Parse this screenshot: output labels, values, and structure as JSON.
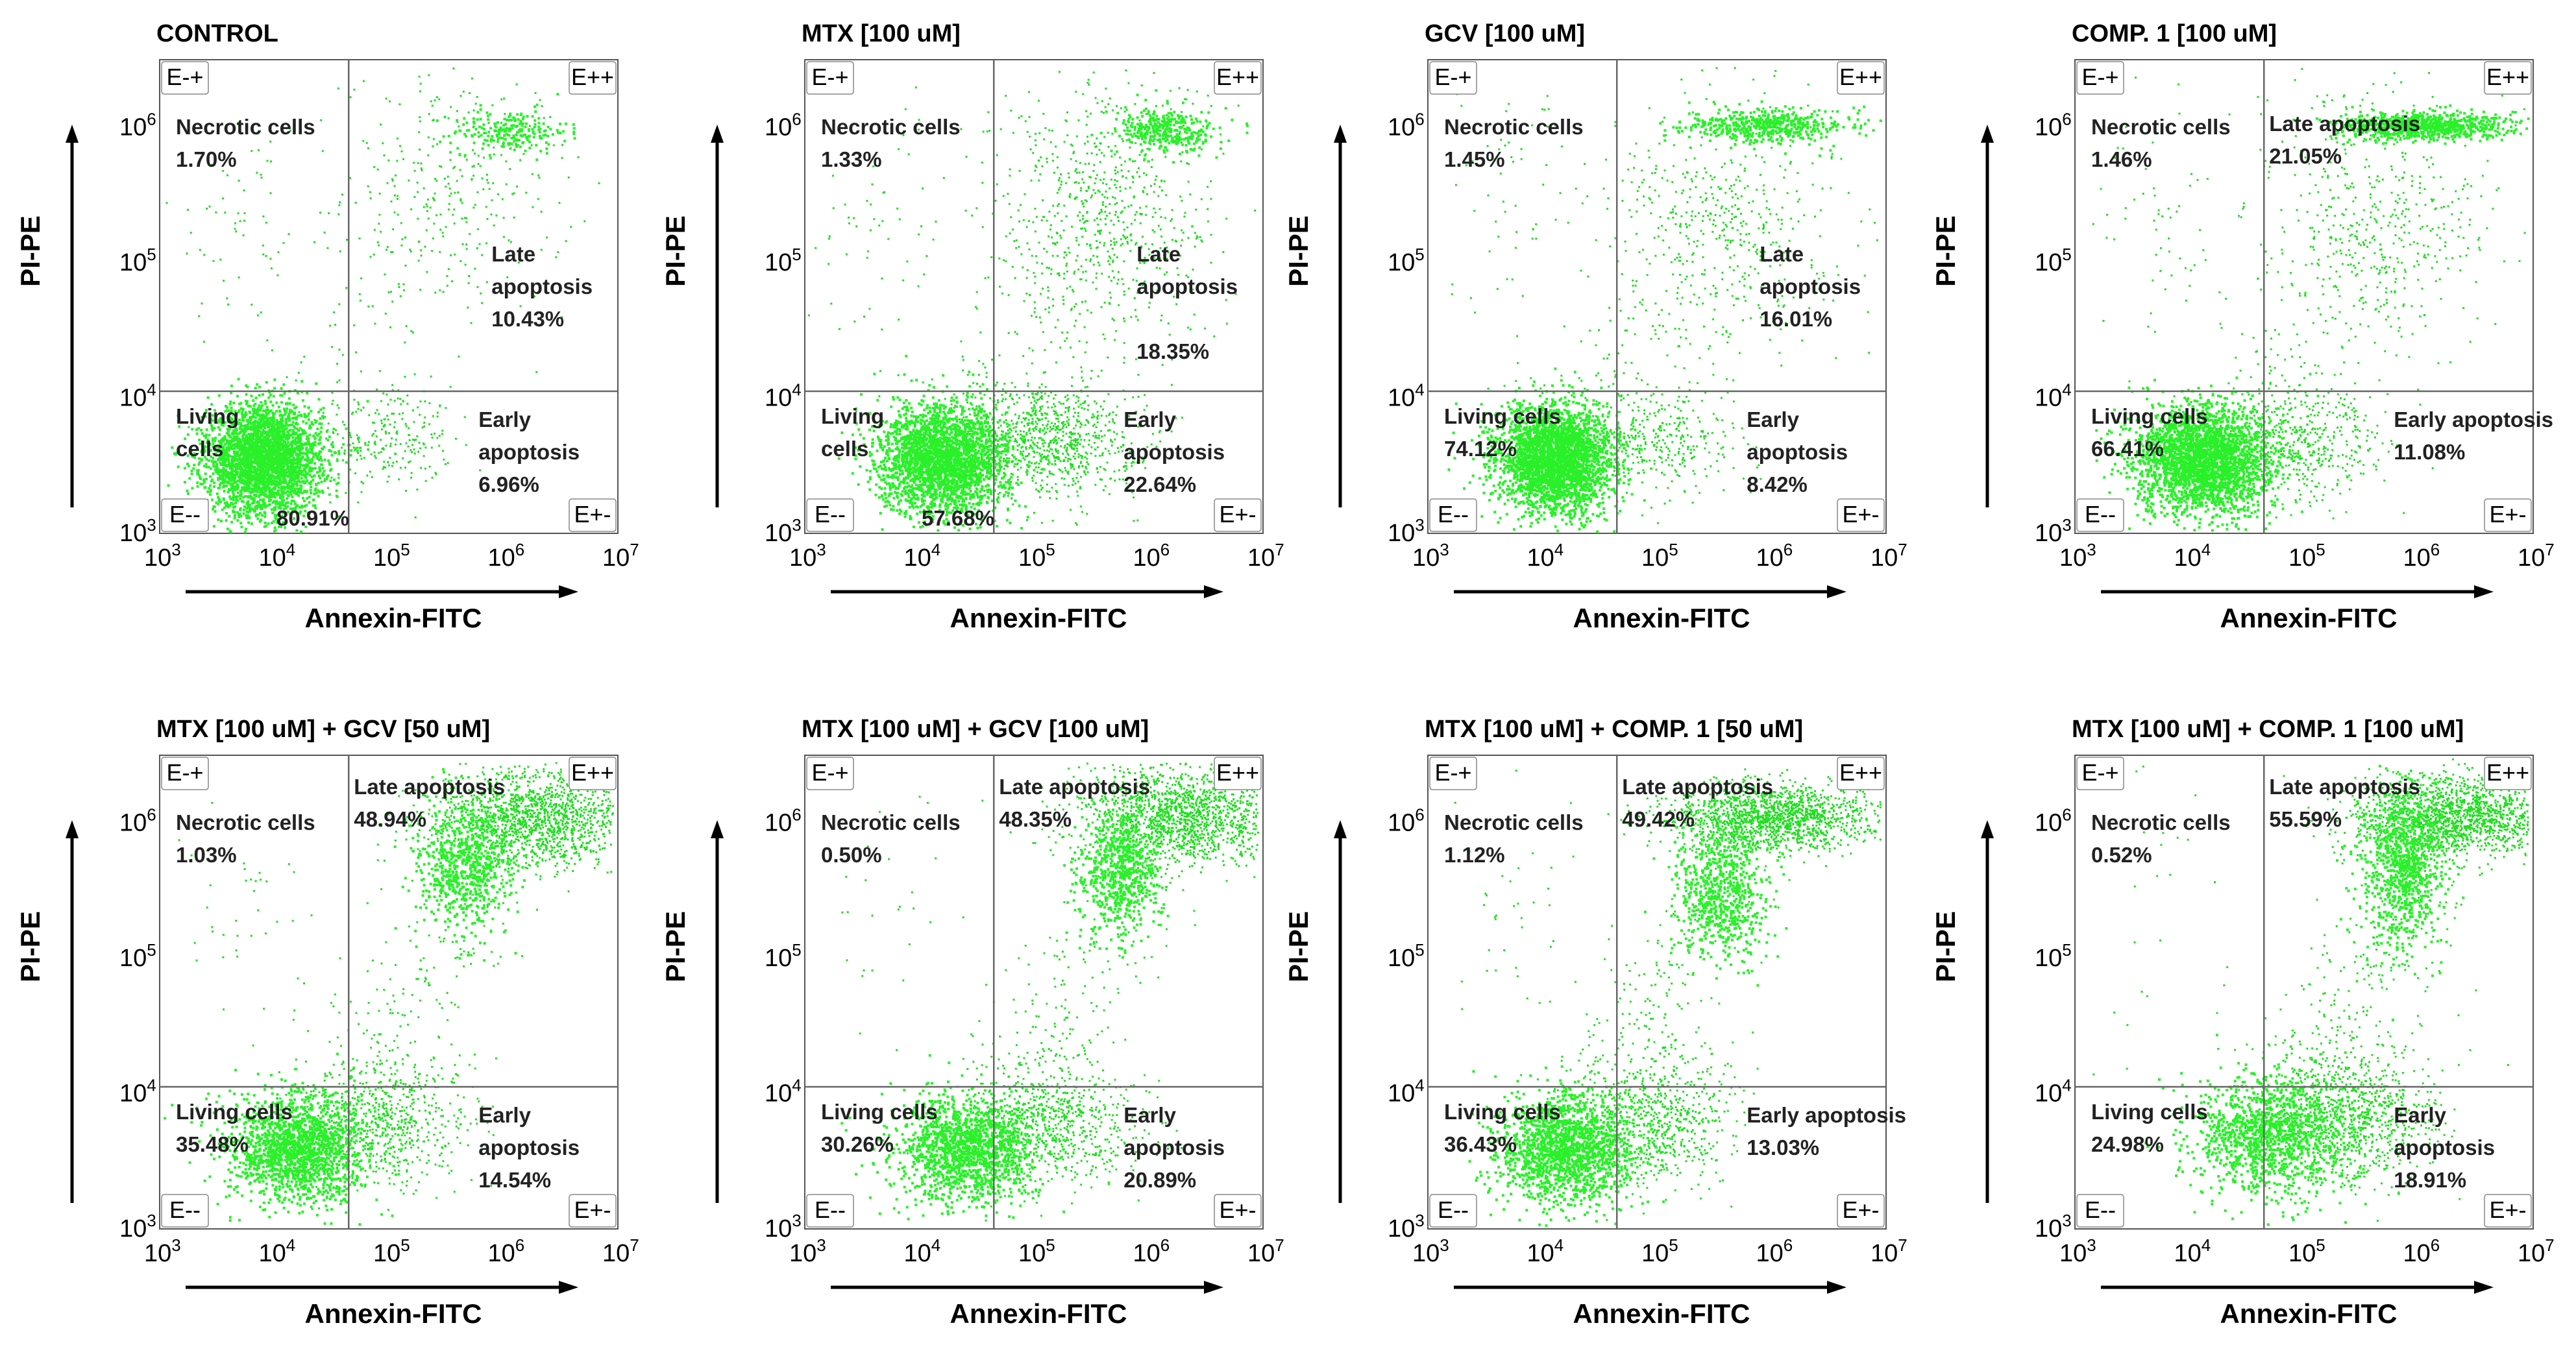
{
  "figure": {
    "y_axis_label": "PI-PE",
    "x_axis_label": "Annexin-FITC",
    "tick_base": "10",
    "tick_exponents": [
      "3",
      "4",
      "5",
      "6",
      "7"
    ],
    "quadrant_labels": {
      "ul": "E-+",
      "ur": "E++",
      "ll": "E--",
      "lr": "E+-"
    },
    "point_color": "#22dd22",
    "core_color": "#2af02a"
  },
  "chart_data": [
    {
      "type": "scatter",
      "title": "CONTROL",
      "xlabel": "Annexin-FITC",
      "ylabel": "PI-PE",
      "xlim": [
        3,
        7
      ],
      "ylim": [
        3,
        6.5
      ],
      "scale": "log10",
      "gate": {
        "x": 4.65,
        "y": 4.05
      },
      "quadrants": [
        {
          "id": "necrotic",
          "lines": [
            "Necrotic cells",
            "1.70%"
          ],
          "value": 1.7
        },
        {
          "id": "late",
          "lines": [
            "Late",
            "apoptosis",
            "10.43%"
          ],
          "value": 10.43
        },
        {
          "id": "living",
          "lines": [
            "Living",
            "cells"
          ],
          "pct_line": "80.91%",
          "value": 80.91
        },
        {
          "id": "early",
          "lines": [
            "Early",
            "apoptosis",
            "6.96%"
          ],
          "value": 6.96
        }
      ]
    },
    {
      "type": "scatter",
      "title": "MTX [100 uM]",
      "xlabel": "Annexin-FITC",
      "ylabel": "PI-PE",
      "xlim": [
        3,
        7
      ],
      "ylim": [
        3,
        6.5
      ],
      "scale": "log10",
      "gate": {
        "x": 4.65,
        "y": 4.05
      },
      "quadrants": [
        {
          "id": "necrotic",
          "lines": [
            "Necrotic cells",
            "1.33%"
          ],
          "value": 1.33
        },
        {
          "id": "late",
          "lines": [
            "Late",
            "apoptosis",
            "",
            "18.35%"
          ],
          "value": 18.35
        },
        {
          "id": "living",
          "lines": [
            "Living",
            "cells"
          ],
          "pct_line": "57.68%",
          "value": 57.68
        },
        {
          "id": "early",
          "lines": [
            "Early",
            "apoptosis",
            "22.64%"
          ],
          "value": 22.64
        }
      ]
    },
    {
      "type": "scatter",
      "title": "GCV [100 uM]",
      "xlabel": "Annexin-FITC",
      "ylabel": "PI-PE",
      "xlim": [
        3,
        7
      ],
      "ylim": [
        3,
        6.5
      ],
      "scale": "log10",
      "gate": {
        "x": 4.65,
        "y": 4.05
      },
      "quadrants": [
        {
          "id": "necrotic",
          "lines": [
            "Necrotic cells",
            "1.45%"
          ],
          "value": 1.45
        },
        {
          "id": "late",
          "lines": [
            "Late",
            "apoptosis",
            "16.01%"
          ],
          "value": 16.01
        },
        {
          "id": "living",
          "lines": [
            "Living cells",
            "74.12%"
          ],
          "value": 74.12
        },
        {
          "id": "early",
          "lines": [
            "Early",
            "apoptosis",
            "8.42%"
          ],
          "value": 8.42
        }
      ]
    },
    {
      "type": "scatter",
      "title": "COMP. 1  [100 uM]",
      "xlabel": "Annexin-FITC",
      "ylabel": "PI-PE",
      "xlim": [
        3,
        7
      ],
      "ylim": [
        3,
        6.5
      ],
      "scale": "log10",
      "gate": {
        "x": 4.65,
        "y": 4.05
      },
      "quadrants": [
        {
          "id": "necrotic",
          "lines": [
            "Necrotic cells",
            "1.46%"
          ],
          "value": 1.46
        },
        {
          "id": "late",
          "lines": [
            "Late apoptosis",
            "21.05%"
          ],
          "value": 21.05
        },
        {
          "id": "living",
          "lines": [
            "Living cells",
            "66.41%"
          ],
          "value": 66.41
        },
        {
          "id": "early",
          "lines": [
            "Early apoptosis",
            "11.08%"
          ],
          "value": 11.08
        }
      ]
    },
    {
      "type": "scatter",
      "title": "MTX [100 uM] +  GCV [50 uM]",
      "xlabel": "Annexin-FITC",
      "ylabel": "PI-PE",
      "xlim": [
        3,
        7
      ],
      "ylim": [
        3,
        6.5
      ],
      "scale": "log10",
      "gate": {
        "x": 4.65,
        "y": 4.05
      },
      "quadrants": [
        {
          "id": "necrotic",
          "lines": [
            "Necrotic cells",
            "1.03%"
          ],
          "value": 1.03
        },
        {
          "id": "late",
          "lines": [
            "Late apoptosis",
            "48.94%"
          ],
          "value": 48.94
        },
        {
          "id": "living",
          "lines": [
            "Living cells",
            "35.48%"
          ],
          "value": 35.48
        },
        {
          "id": "early",
          "lines": [
            "Early",
            "apoptosis",
            "14.54%"
          ],
          "value": 14.54
        }
      ]
    },
    {
      "type": "scatter",
      "title": "MTX [100 uM] + GCV [100 uM]",
      "xlabel": "Annexin-FITC",
      "ylabel": "PI-PE",
      "xlim": [
        3,
        7
      ],
      "ylim": [
        3,
        6.5
      ],
      "scale": "log10",
      "gate": {
        "x": 4.65,
        "y": 4.05
      },
      "quadrants": [
        {
          "id": "necrotic",
          "lines": [
            "Necrotic cells",
            "0.50%"
          ],
          "value": 0.5
        },
        {
          "id": "late",
          "lines": [
            "Late apoptosis",
            "48.35%"
          ],
          "value": 48.35
        },
        {
          "id": "living",
          "lines": [
            "Living cells",
            "30.26%"
          ],
          "value": 30.26
        },
        {
          "id": "early",
          "lines": [
            "Early",
            "apoptosis",
            "20.89%"
          ],
          "value": 20.89
        }
      ]
    },
    {
      "type": "scatter",
      "title": "MTX [100 uM] +   COMP. 1 [50 uM]",
      "xlabel": "Annexin-FITC",
      "ylabel": "PI-PE",
      "xlim": [
        3,
        7
      ],
      "ylim": [
        3,
        6.5
      ],
      "scale": "log10",
      "gate": {
        "x": 4.65,
        "y": 4.05
      },
      "quadrants": [
        {
          "id": "necrotic",
          "lines": [
            "Necrotic cells",
            "1.12%"
          ],
          "value": 1.12
        },
        {
          "id": "late",
          "lines": [
            "Late apoptosis",
            "49.42%"
          ],
          "value": 49.42
        },
        {
          "id": "living",
          "lines": [
            "Living cells",
            "36.43%"
          ],
          "value": 36.43
        },
        {
          "id": "early",
          "lines": [
            "Early apoptosis",
            "13.03%"
          ],
          "value": 13.03
        }
      ]
    },
    {
      "type": "scatter",
      "title": "MTX [100 uM] +   COMP. 1  [100 uM]",
      "xlabel": "Annexin-FITC",
      "ylabel": "PI-PE",
      "xlim": [
        3,
        7
      ],
      "ylim": [
        3,
        6.5
      ],
      "scale": "log10",
      "gate": {
        "x": 4.65,
        "y": 4.05
      },
      "quadrants": [
        {
          "id": "necrotic",
          "lines": [
            "Necrotic cells",
            "0.52%"
          ],
          "value": 0.52
        },
        {
          "id": "late",
          "lines": [
            "Late apoptosis",
            "55.59%"
          ],
          "value": 55.59
        },
        {
          "id": "living",
          "lines": [
            "Living cells",
            "24.98%"
          ],
          "value": 24.98
        },
        {
          "id": "early",
          "lines": [
            "Early",
            "apoptosis",
            "18.91%"
          ],
          "value": 18.91
        }
      ]
    }
  ]
}
